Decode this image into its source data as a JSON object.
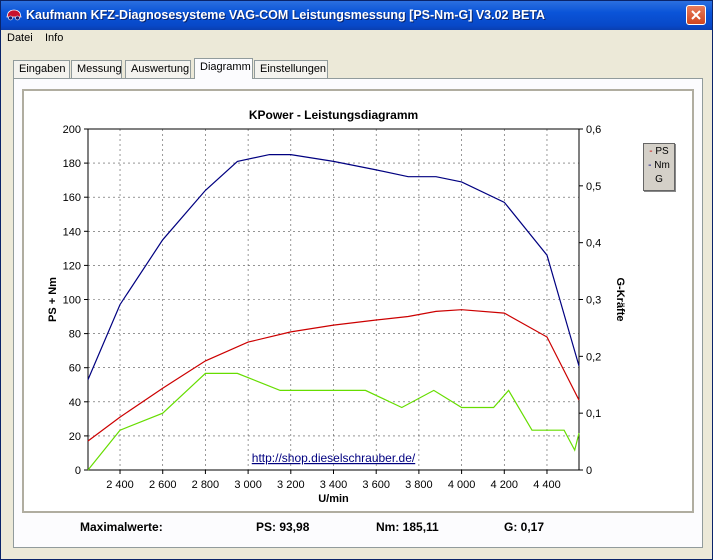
{
  "window": {
    "title": "Kaufmann KFZ-Diagnosesysteme  VAG-COM  Leistungsmessung [PS-Nm-G] V3.02 BETA",
    "close_icon": "close-x-icon",
    "app_icon": "car-icon"
  },
  "menu": [
    "Datei",
    "Info"
  ],
  "tabs": [
    "Eingaben",
    "Messung",
    "Auswertung",
    "Diagramm",
    "Einstellungen"
  ],
  "active_tab": "Diagramm",
  "legend": [
    "PS",
    "Nm",
    "G"
  ],
  "link_text": "http://shop.dieselschrauber.de/",
  "maxwerte": {
    "label": "Maximalwerte:",
    "ps": "PS: 93,98",
    "nm": "Nm: 185,11",
    "g": "G: 0,17"
  },
  "colors": {
    "ps": "#cc0000",
    "nm": "#000080",
    "g": "#66dd00"
  },
  "chart_data": {
    "type": "line",
    "title": "KPower - Leistungsdiagramm",
    "xlabel": "U/min",
    "ylabel": "PS + Nm",
    "y2label": "G-Kräfte",
    "xlim": [
      2250,
      4550
    ],
    "ylim": [
      0,
      200
    ],
    "y2lim": [
      0,
      0.6
    ],
    "x_ticks": [
      "2 400",
      "2 600",
      "2 800",
      "3 000",
      "3 200",
      "3 400",
      "3 600",
      "3 800",
      "4 000",
      "4 200",
      "4 400"
    ],
    "x_tick_values": [
      2400,
      2600,
      2800,
      3000,
      3200,
      3400,
      3600,
      3800,
      4000,
      4200,
      4400
    ],
    "y_ticks": [
      "0",
      "20",
      "40",
      "60",
      "80",
      "100",
      "120",
      "140",
      "160",
      "180",
      "200"
    ],
    "y_tick_values": [
      0,
      20,
      40,
      60,
      80,
      100,
      120,
      140,
      160,
      180,
      200
    ],
    "y2_ticks": [
      "0",
      "0,1",
      "0,2",
      "0,3",
      "0,4",
      "0,5",
      "0,6"
    ],
    "y2_tick_values": [
      0,
      0.1,
      0.2,
      0.3,
      0.4,
      0.5,
      0.6
    ],
    "grid": true,
    "legend_position": "top-right",
    "series": [
      {
        "name": "PS",
        "axis": "left",
        "x": [
          2250,
          2400,
          2600,
          2800,
          3000,
          3200,
          3400,
          3600,
          3750,
          3880,
          4000,
          4200,
          4400,
          4550
        ],
        "values": [
          17,
          31,
          48,
          64,
          75,
          81,
          85,
          88,
          90,
          93,
          94,
          92,
          78,
          41
        ]
      },
      {
        "name": "Nm",
        "axis": "left",
        "x": [
          2250,
          2400,
          2600,
          2800,
          2950,
          3100,
          3200,
          3400,
          3600,
          3750,
          3880,
          4000,
          4200,
          4400,
          4550
        ],
        "values": [
          53,
          97,
          135,
          164,
          181,
          185,
          185,
          181,
          176,
          172,
          172,
          169,
          157,
          126,
          61
        ]
      },
      {
        "name": "G",
        "axis": "right",
        "x": [
          2250,
          2400,
          2600,
          2800,
          2950,
          3150,
          3300,
          3550,
          3720,
          3870,
          4000,
          4150,
          4220,
          4330,
          4480,
          4530,
          4550
        ],
        "values": [
          0.0,
          0.07,
          0.1,
          0.17,
          0.17,
          0.14,
          0.14,
          0.14,
          0.11,
          0.14,
          0.11,
          0.11,
          0.14,
          0.07,
          0.07,
          0.035,
          0.065
        ]
      }
    ]
  }
}
